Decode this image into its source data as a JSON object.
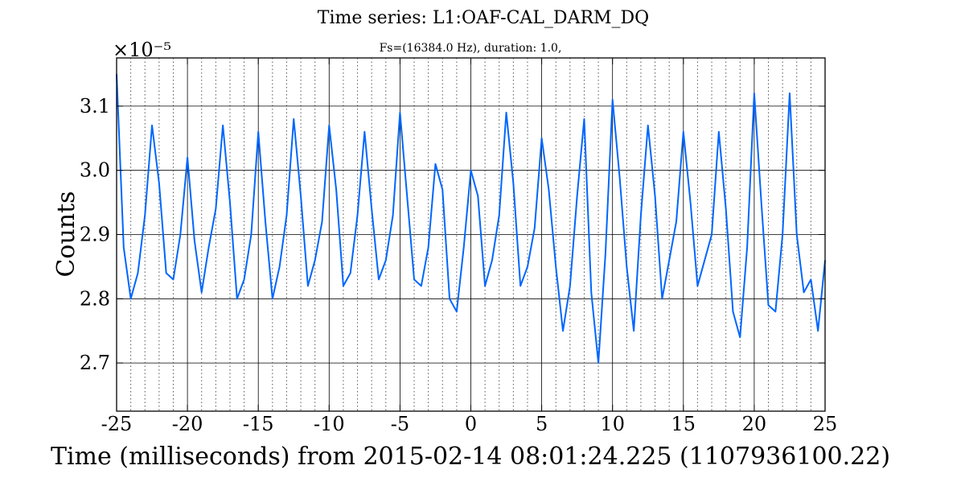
{
  "chart_data": {
    "type": "line",
    "title": "Time series:  L1:OAF-CAL_DARM_DQ",
    "subtitle": "Fs=(16384.0 Hz), duration: 1.0,",
    "xlabel": "Time (milliseconds) from 2015-02-14 08:01:24.225 (1107936100.22)",
    "ylabel": "Counts",
    "y_multiplier": "×10⁻⁵",
    "xlim": [
      -25,
      25
    ],
    "ylim": [
      2.625,
      3.175
    ],
    "xticks": [
      -25,
      -20,
      -15,
      -10,
      -5,
      0,
      5,
      10,
      15,
      20,
      25
    ],
    "xtick_labels": [
      "-25",
      "-20",
      "-15",
      "-10",
      "-5",
      "0",
      "5",
      "10",
      "15",
      "20",
      "25"
    ],
    "yticks": [
      2.7,
      2.8,
      2.9,
      3.0,
      3.1
    ],
    "ytick_labels": [
      "2.7",
      "2.8",
      "2.9",
      "3.0",
      "3.1"
    ],
    "minor_x_step": 1,
    "grid": true,
    "line_color": "#0066ff",
    "series": [
      {
        "x": [
          -25.0,
          -24.5,
          -24.0,
          -23.5,
          -23.0,
          -22.5,
          -22.0,
          -21.5,
          -21.0,
          -20.5,
          -20.0,
          -19.5,
          -19.0,
          -18.5,
          -18.0,
          -17.5,
          -17.0,
          -16.5,
          -16.0,
          -15.5,
          -15.0,
          -14.5,
          -14.0,
          -13.5,
          -13.0,
          -12.5,
          -12.0,
          -11.5,
          -11.0,
          -10.5,
          -10.0,
          -9.5,
          -9.0,
          -8.5,
          -8.0,
          -7.5,
          -7.0,
          -6.5,
          -6.0,
          -5.5,
          -5.0,
          -4.5,
          -4.0,
          -3.5,
          -3.0,
          -2.5,
          -2.0,
          -1.5,
          -1.0,
          -0.5,
          0.0,
          0.5,
          1.0,
          1.5,
          2.0,
          2.5,
          3.0,
          3.5,
          4.0,
          4.5,
          5.0,
          5.5,
          6.0,
          6.5,
          7.0,
          7.5,
          8.0,
          8.5,
          9.0,
          9.5,
          10.0,
          10.5,
          11.0,
          11.5,
          12.0,
          12.5,
          13.0,
          13.5,
          14.0,
          14.5,
          15.0,
          15.5,
          16.0,
          16.5,
          17.0,
          17.5,
          18.0,
          18.5,
          19.0,
          19.5,
          20.0,
          20.5,
          21.0,
          21.5,
          22.0,
          22.5,
          23.0,
          23.5,
          24.0,
          24.5,
          25.0
        ],
        "values": [
          3.15,
          2.88,
          2.8,
          2.84,
          2.93,
          3.07,
          2.98,
          2.84,
          2.83,
          2.9,
          3.02,
          2.89,
          2.81,
          2.88,
          2.94,
          3.07,
          2.95,
          2.8,
          2.83,
          2.9,
          3.06,
          2.92,
          2.8,
          2.85,
          2.93,
          3.08,
          2.96,
          2.82,
          2.86,
          2.92,
          3.07,
          2.97,
          2.82,
          2.84,
          2.93,
          3.06,
          2.94,
          2.83,
          2.86,
          2.93,
          3.09,
          2.96,
          2.83,
          2.82,
          2.88,
          3.01,
          2.97,
          2.8,
          2.78,
          2.88,
          3.0,
          2.96,
          2.82,
          2.86,
          2.93,
          3.09,
          2.98,
          2.82,
          2.85,
          2.91,
          3.05,
          2.97,
          2.85,
          2.75,
          2.82,
          2.96,
          3.08,
          2.81,
          2.7,
          2.87,
          3.11,
          2.99,
          2.85,
          2.75,
          2.93,
          3.07,
          2.96,
          2.8,
          2.86,
          2.92,
          3.06,
          2.95,
          2.82,
          2.86,
          2.9,
          3.06,
          2.94,
          2.78,
          2.74,
          2.88,
          3.12,
          2.95,
          2.79,
          2.78,
          2.9,
          3.12,
          2.9,
          2.81,
          2.83,
          2.75,
          2.86
        ]
      }
    ]
  }
}
